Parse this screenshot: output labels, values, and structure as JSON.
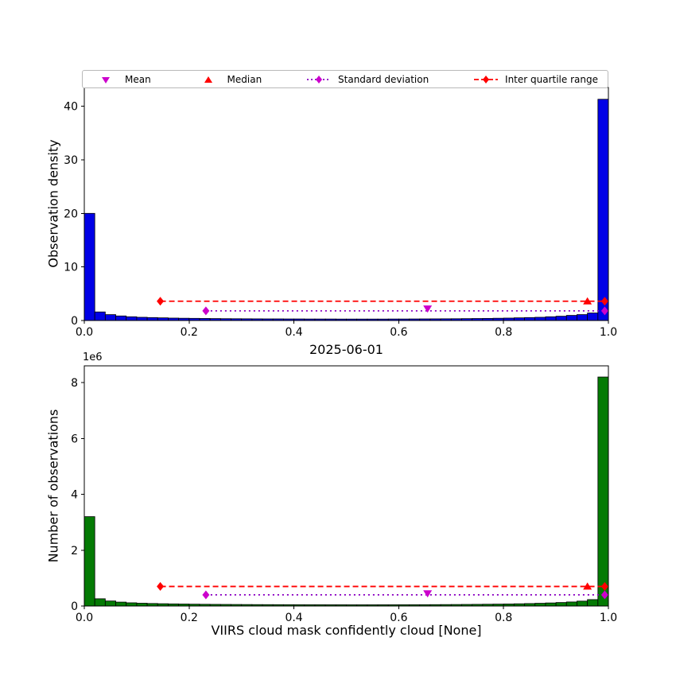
{
  "colors": {
    "mean": "#cc00cc",
    "median": "#ff0000",
    "std": "#8a00c2",
    "std_marker": "#cc00cc",
    "iqr": "#ff0000"
  },
  "legend": {
    "items": [
      {
        "label": "Mean",
        "type": "marker",
        "marker": "triangle-down",
        "color": "#cc00cc",
        "icon_name": "mean-triangle-down-icon"
      },
      {
        "label": "Median",
        "type": "marker",
        "marker": "triangle-up",
        "color": "#ff0000",
        "icon_name": "median-triangle-up-icon"
      },
      {
        "label": "Standard deviation",
        "type": "line-marker",
        "linestyle": "dotted",
        "color": "#8a00c2",
        "marker_color": "#cc00cc",
        "icon_name": "std-dev-line-icon"
      },
      {
        "label": "Inter quartile range",
        "type": "line-marker",
        "linestyle": "dashed",
        "color": "#ff0000",
        "marker_color": "#ff0000",
        "icon_name": "iqr-line-icon"
      }
    ]
  },
  "chart_data": [
    {
      "type": "bar",
      "title": "",
      "xlabel": "",
      "ylabel": "Observation density",
      "bar_color": "#0000e6",
      "bar_edge": "#000000",
      "bin_start": 0.0,
      "bin_width": 0.02,
      "values": [
        20.0,
        1.6,
        1.1,
        0.85,
        0.7,
        0.6,
        0.55,
        0.5,
        0.45,
        0.42,
        0.4,
        0.38,
        0.36,
        0.34,
        0.33,
        0.32,
        0.31,
        0.3,
        0.3,
        0.29,
        0.29,
        0.28,
        0.28,
        0.28,
        0.27,
        0.27,
        0.27,
        0.27,
        0.27,
        0.28,
        0.28,
        0.29,
        0.3,
        0.31,
        0.32,
        0.33,
        0.35,
        0.37,
        0.39,
        0.42,
        0.45,
        0.5,
        0.55,
        0.6,
        0.7,
        0.8,
        0.95,
        1.1,
        1.4,
        41.3
      ],
      "xlim": [
        0.0,
        1.0
      ],
      "ylim": [
        0.0,
        43.5
      ],
      "xticks": [
        "0.0",
        "0.2",
        "0.4",
        "0.6",
        "0.8",
        "1.0"
      ],
      "xtick_vals": [
        0.0,
        0.2,
        0.4,
        0.6,
        0.8,
        1.0
      ],
      "yticks": [
        "0",
        "10",
        "20",
        "30",
        "40"
      ],
      "ytick_vals": [
        0,
        10,
        20,
        30,
        40
      ],
      "stats": {
        "mean": {
          "x": 0.655,
          "y": 2.2
        },
        "median": {
          "x": 0.96,
          "y": 3.6
        },
        "std_line": {
          "x1": 0.232,
          "x2": 0.993,
          "y": 1.8
        },
        "iqr_line": {
          "x1": 0.145,
          "x2": 0.993,
          "y": 3.6
        }
      }
    },
    {
      "type": "bar",
      "title": "2025-06-01",
      "xlabel": "VIIRS cloud mask confidently cloud [None]",
      "ylabel": "Number of observations",
      "offset_text": "1e6",
      "bar_color": "#047a04",
      "bar_edge": "#000000",
      "bin_start": 0.0,
      "bin_width": 0.02,
      "values": [
        3200000,
        260000,
        180000,
        140000,
        115000,
        100000,
        90000,
        82000,
        76000,
        71000,
        66000,
        62000,
        59000,
        57000,
        55000,
        53000,
        51000,
        50000,
        49000,
        48000,
        47000,
        46000,
        46000,
        45000,
        45000,
        44000,
        44000,
        44000,
        45000,
        45000,
        46000,
        47000,
        48000,
        50000,
        52000,
        54000,
        57000,
        60000,
        64000,
        68000,
        73000,
        80000,
        88000,
        98000,
        110000,
        125000,
        145000,
        175000,
        230000,
        8200000
      ],
      "xlim": [
        0.0,
        1.0
      ],
      "ylim": [
        0,
        8600000
      ],
      "xticks": [
        "0.0",
        "0.2",
        "0.4",
        "0.6",
        "0.8",
        "1.0"
      ],
      "xtick_vals": [
        0.0,
        0.2,
        0.4,
        0.6,
        0.8,
        1.0
      ],
      "yticks": [
        "0",
        "2",
        "4",
        "6",
        "8"
      ],
      "ytick_vals": [
        0,
        2000000,
        4000000,
        6000000,
        8000000
      ],
      "stats": {
        "mean": {
          "x": 0.655,
          "y": 450000
        },
        "median": {
          "x": 0.96,
          "y": 700000
        },
        "std_line": {
          "x1": 0.232,
          "x2": 0.993,
          "y": 400000
        },
        "iqr_line": {
          "x1": 0.145,
          "x2": 0.993,
          "y": 700000
        }
      }
    }
  ]
}
